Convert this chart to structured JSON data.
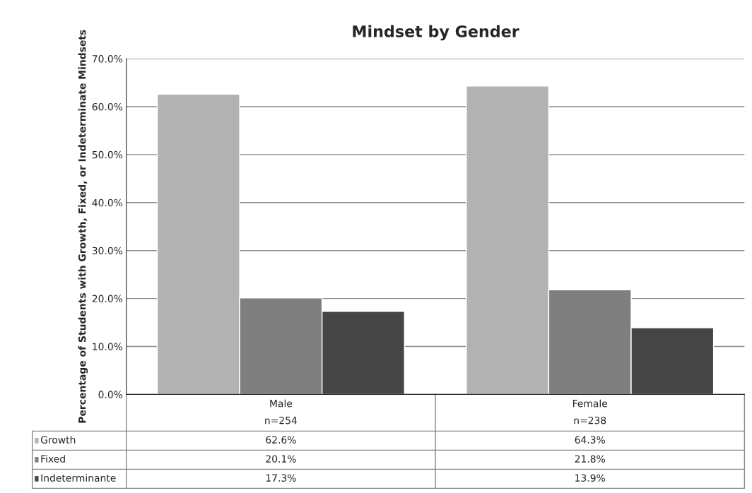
{
  "chart_data": {
    "type": "bar",
    "title": "Mindset by Gender",
    "ylabel": "Percentage of Students with Growth, Fixed, or Indeterminate Mindsets",
    "categories": [
      "Male\nn=254",
      "Female\nn=238"
    ],
    "series": [
      {
        "name": "Growth",
        "color": "#b2b2b2",
        "values": [
          62.6,
          64.3
        ],
        "value_labels": [
          "62.6%",
          "64.3%"
        ]
      },
      {
        "name": "Fixed",
        "color": "#7f7f7f",
        "values": [
          20.1,
          21.8
        ],
        "value_labels": [
          "20.1%",
          "21.8%"
        ]
      },
      {
        "name": "Indeterminante",
        "color": "#454545",
        "values": [
          17.3,
          13.9
        ],
        "value_labels": [
          "17.3%",
          "13.9%"
        ]
      }
    ],
    "ylim": [
      0,
      70
    ],
    "yticks": [
      {
        "value": 0,
        "label": "0.0%"
      },
      {
        "value": 10,
        "label": "10.0%"
      },
      {
        "value": 20,
        "label": "20.0%"
      },
      {
        "value": 30,
        "label": "30.0%"
      },
      {
        "value": 40,
        "label": "40.0%"
      },
      {
        "value": 50,
        "label": "50.0%"
      },
      {
        "value": 60,
        "label": "60.0%"
      },
      {
        "value": 70,
        "label": "70.0%"
      }
    ],
    "grid": "y",
    "legend": "bottom"
  }
}
